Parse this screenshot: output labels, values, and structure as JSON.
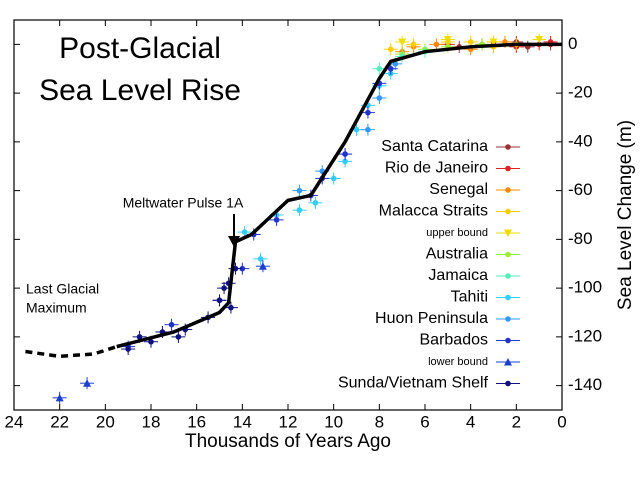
{
  "chart_data": {
    "type": "scatter",
    "title": [
      "Post-Glacial",
      "Sea Level Rise"
    ],
    "x_label": "Thousands of Years Ago",
    "y_label": "Sea Level Change (m)",
    "annotations": {
      "pulse": "Meltwater Pulse 1A",
      "lgm": [
        "Last Glacial",
        "Maximum"
      ]
    },
    "xlim": [
      24,
      0
    ],
    "ylim": [
      -150,
      10
    ],
    "xticks": [
      24,
      22,
      20,
      18,
      16,
      14,
      12,
      10,
      8,
      6,
      4,
      2,
      0
    ],
    "yticks": [
      0,
      -20,
      -40,
      -60,
      -80,
      -100,
      -120,
      -140
    ],
    "y_axis_side": "right",
    "series": [
      {
        "name": "Santa Catarina",
        "color": "#993333",
        "marker": "dot",
        "x": [
          4.5,
          3.5,
          2,
          1.5,
          0.5
        ],
        "values": [
          -1,
          0,
          1,
          -1,
          0
        ]
      },
      {
        "name": "Rio de Janeiro",
        "color": "#dd2222",
        "marker": "dot",
        "x": [
          5,
          3,
          2,
          1,
          0.5
        ],
        "values": [
          0,
          1,
          -1,
          0,
          1
        ]
      },
      {
        "name": "Senegal",
        "color": "#ff8800",
        "marker": "dot",
        "x": [
          7,
          6.5,
          5.5,
          4,
          2.5
        ],
        "values": [
          -3,
          -1,
          0,
          -2,
          1
        ]
      },
      {
        "name": "Malacca Straits",
        "color": "#ffcc00",
        "marker": "dot",
        "x": [
          7.5,
          6.5,
          5,
          4,
          3,
          2
        ],
        "values": [
          -2,
          0,
          1,
          1,
          -1,
          0
        ]
      },
      {
        "name": "upper bound",
        "color": "#eedd00",
        "marker": "down",
        "x": [
          7,
          5,
          3,
          1
        ],
        "values": [
          1,
          2,
          1,
          2
        ]
      },
      {
        "name": "Australia",
        "color": "#99ee33",
        "marker": "dot",
        "x": [
          7,
          6,
          5,
          3.5
        ],
        "values": [
          -4,
          -2,
          -1,
          0
        ]
      },
      {
        "name": "Jamaica",
        "color": "#55eebb",
        "marker": "dot",
        "x": [
          8,
          7,
          6
        ],
        "values": [
          -10,
          -5,
          -3
        ]
      },
      {
        "name": "Tahiti",
        "color": "#33ccff",
        "marker": "dot",
        "x": [
          13.9,
          13.2,
          12.5,
          11.5,
          10.8,
          10,
          9.5,
          9,
          8.5,
          8,
          7.5
        ],
        "values": [
          -77,
          -88,
          -70,
          -68,
          -65,
          -55,
          -48,
          -35,
          -25,
          -17,
          -12
        ]
      },
      {
        "name": "Huon Peninsula",
        "color": "#3399ff",
        "marker": "dot",
        "x": [
          11.5,
          10.5,
          9.5,
          8.5,
          8,
          7.3
        ],
        "values": [
          -60,
          -52,
          -45,
          -35,
          -22,
          -8
        ]
      },
      {
        "name": "Barbados",
        "color": "#2233cc",
        "marker": "dot",
        "x": [
          19,
          17.1,
          15,
          14,
          13.5,
          12.5,
          11,
          10.5,
          9.5,
          8.5,
          8,
          7.5
        ],
        "values": [
          -124,
          -115,
          -105,
          -92,
          -78,
          -72,
          -62,
          -55,
          -45,
          -28,
          -16,
          -10
        ]
      },
      {
        "name": "lower bound",
        "color": "#1a3fd0",
        "marker": "up",
        "x": [
          22,
          20.8,
          13.1
        ],
        "values": [
          -145,
          -139,
          -91
        ]
      },
      {
        "name": "Sunda/Vietnam Shelf",
        "color": "#101080",
        "marker": "dot",
        "x": [
          19,
          18.5,
          18,
          17.5,
          16.8,
          16.5,
          15.5,
          15,
          14.8,
          14.6,
          14.5,
          14.3
        ],
        "values": [
          -125,
          -120,
          -122,
          -118,
          -120,
          -117,
          -112,
          -105,
          -100,
          -98,
          -108,
          -92
        ]
      }
    ],
    "trend": {
      "color": "#000000",
      "x": [
        19.5,
        17,
        15,
        14.6,
        14.3,
        13.6,
        12,
        11,
        9.5,
        8,
        7.5,
        6,
        4,
        2,
        0
      ],
      "values": [
        -124,
        -118,
        -110,
        -106,
        -81,
        -78,
        -64,
        -62,
        -40,
        -14,
        -7,
        -3,
        -1,
        0,
        0
      ]
    },
    "extrapolation": {
      "color": "#000000",
      "x": [
        23.5,
        22,
        20.5,
        19.5
      ],
      "values": [
        -126,
        -128,
        -127,
        -124
      ]
    }
  }
}
